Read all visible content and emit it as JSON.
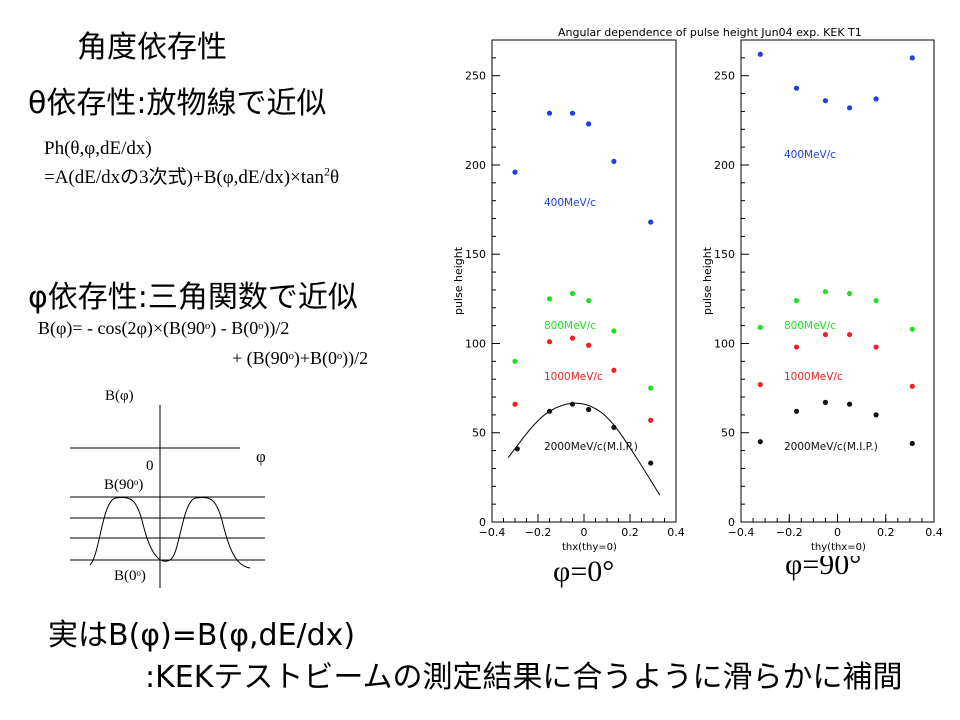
{
  "slide": {
    "title": "角度依存性",
    "theta_heading": "θ依存性:放物線で近似",
    "ph_formula_line1": "Ph(θ,φ,dE/dx)",
    "ph_formula_line2_a": "=A(dE/dxの3次式)+B(φ,dE/dx)×tan",
    "ph_formula_line2_sup": "2",
    "ph_formula_line2_b": "θ",
    "phi_heading": "φ依存性:三角関数で近似",
    "b_formula_line1": "B(φ)= - cos(2φ)×(B(90ᵒ) - B(0ᵒ))/2",
    "b_formula_line2": "+ (B(90ᵒ)+B(0ᵒ))/2",
    "conclusion_line1": "実はB(φ)=B(φ,dE/dx)",
    "conclusion_line2": ":KEKテストビームの測定結果に合うように滑らかに補間",
    "phi_0_label": "φ=0°",
    "phi_90_label": "φ=90°"
  },
  "sketch": {
    "y_label": "B(φ)",
    "x_label": "φ",
    "zero_label": "0",
    "b90_label": "B(90ᵒ)",
    "b0_label": "B(0ᵒ)"
  },
  "figure": {
    "title": "Angular dependence of pulse height Jun04 exp. KEK T1",
    "ylabel": "pulse height",
    "left_xlabel": "thx(thy=0)",
    "right_xlabel": "thy(thx=0)",
    "y_ticks": [
      0,
      50,
      100,
      150,
      200,
      250
    ],
    "x_ticks": [
      -0.4,
      -0.2,
      0,
      0.2,
      0.4
    ],
    "x_tick_labels": [
      "−0.4",
      "−0.2",
      "0",
      "0.2",
      "0.4"
    ],
    "colors": {
      "400": "#1f3fe0",
      "800": "#22dd22",
      "1000": "#ee2222",
      "2000": "#111111"
    }
  },
  "chart_data": [
    {
      "type": "scatter",
      "title": "Angular dependence of pulse height Jun04 exp. KEK T1",
      "xlabel": "thx(thy=0)",
      "ylabel": "pulse height",
      "xlim": [
        -0.4,
        0.4
      ],
      "ylim": [
        0,
        270
      ],
      "series": [
        {
          "name": "400MeV/c",
          "color": "#1f3fe0",
          "x": [
            -0.3,
            -0.15,
            -0.05,
            0.02,
            0.13,
            0.29
          ],
          "y": [
            196,
            229,
            229,
            223,
            202,
            168
          ]
        },
        {
          "name": "800MeV/c",
          "color": "#22dd22",
          "x": [
            -0.3,
            -0.15,
            -0.05,
            0.02,
            0.13,
            0.29
          ],
          "y": [
            90,
            125,
            128,
            124,
            107,
            75
          ]
        },
        {
          "name": "1000MeV/c",
          "color": "#ee2222",
          "x": [
            -0.3,
            -0.15,
            -0.05,
            0.02,
            0.13,
            0.29
          ],
          "y": [
            66,
            101,
            103,
            99,
            85,
            57
          ]
        },
        {
          "name": "2000MeV/c(M.I.P.)",
          "color": "#111111",
          "x": [
            -0.29,
            -0.15,
            -0.05,
            0.02,
            0.13,
            0.29
          ],
          "y": [
            41,
            62,
            66,
            63,
            53,
            33
          ]
        }
      ],
      "fit_curve": {
        "series": "2000MeV/c(M.I.P.)",
        "x": [
          -0.33,
          -0.2,
          -0.1,
          0.0,
          0.1,
          0.2,
          0.33
        ],
        "y": [
          36,
          58,
          66,
          67,
          60,
          42,
          15
        ]
      }
    },
    {
      "type": "scatter",
      "title": "",
      "xlabel": "thy(thx=0)",
      "ylabel": "pulse height",
      "xlim": [
        -0.4,
        0.4
      ],
      "ylim": [
        0,
        270
      ],
      "series": [
        {
          "name": "400MeV/c",
          "color": "#1f3fe0",
          "x": [
            -0.32,
            -0.17,
            -0.05,
            0.05,
            0.16,
            0.31
          ],
          "y": [
            262,
            243,
            236,
            232,
            237,
            260
          ]
        },
        {
          "name": "800MeV/c",
          "color": "#22dd22",
          "x": [
            -0.32,
            -0.17,
            -0.05,
            0.05,
            0.16,
            0.31
          ],
          "y": [
            109,
            124,
            129,
            128,
            124,
            108
          ]
        },
        {
          "name": "1000MeV/c",
          "color": "#ee2222",
          "x": [
            -0.32,
            -0.17,
            -0.05,
            0.05,
            0.16,
            0.31
          ],
          "y": [
            77,
            98,
            105,
            105,
            98,
            76
          ]
        },
        {
          "name": "2000MeV/c(M.I.P.)",
          "color": "#111111",
          "x": [
            -0.32,
            -0.17,
            -0.05,
            0.05,
            0.16,
            0.31
          ],
          "y": [
            45,
            62,
            67,
            66,
            60,
            44
          ]
        }
      ]
    }
  ]
}
